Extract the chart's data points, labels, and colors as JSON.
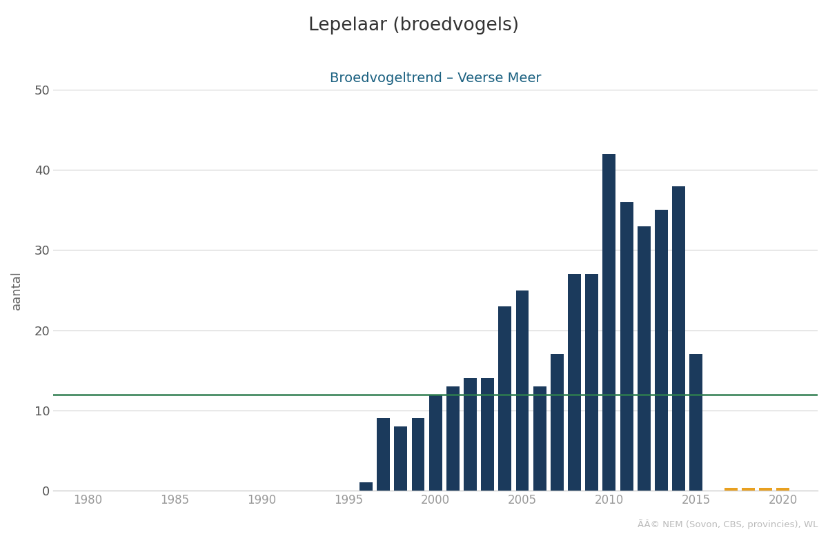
{
  "title": "Lepelaar (broedvogels)",
  "subtitle": "Broedvogeltrend – Veerse Meer",
  "ylabel": "aantal",
  "title_color": "#333333",
  "subtitle_color": "#1a6080",
  "bar_color": "#1b3a5c",
  "orange_color": "#e8a020",
  "green_line_color": "#2e7d4f",
  "green_line_value": 12,
  "background_color": "#ffffff",
  "grid_color": "#d0d0d0",
  "years": [
    1996,
    1997,
    1998,
    1999,
    2000,
    2001,
    2002,
    2003,
    2004,
    2005,
    2006,
    2007,
    2008,
    2009,
    2010,
    2011,
    2012,
    2013,
    2014,
    2015
  ],
  "values": [
    1,
    9,
    8,
    9,
    12,
    13,
    14,
    14,
    23,
    25,
    13,
    17,
    27,
    27,
    42,
    36,
    33,
    35,
    38,
    17
  ],
  "orange_years": [
    2017,
    2018,
    2019,
    2020
  ],
  "orange_values": [
    0.3,
    0.3,
    0.3,
    0.3
  ],
  "xmin": 1978,
  "xmax": 2022,
  "ymin": 0,
  "ymax": 50,
  "yticks": [
    0,
    10,
    20,
    30,
    40,
    50
  ],
  "xticks": [
    1980,
    1985,
    1990,
    1995,
    2000,
    2005,
    2010,
    2015,
    2020
  ],
  "credit_text": "ÃÂ© NEM (Sovon, CBS, provincies), WL",
  "figwidth": 12.0,
  "figheight": 8.0,
  "bar_width": 0.75
}
